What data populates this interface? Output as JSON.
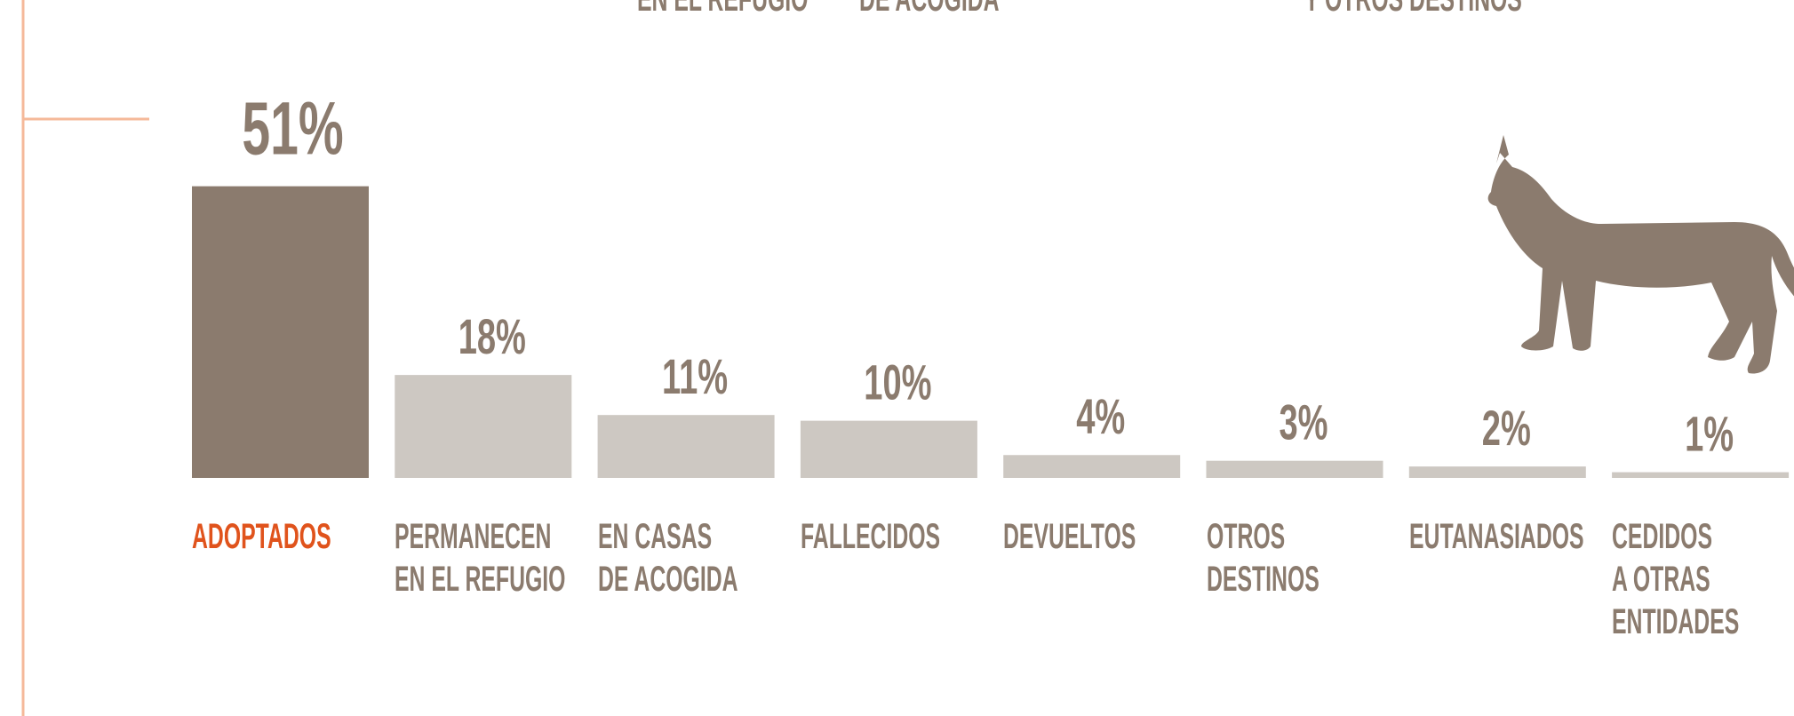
{
  "chart_data": {
    "type": "bar",
    "annotations": [
      "EN EL REFUGIO",
      "DE ACOGIDA",
      "Y OTROS DESTINOS"
    ],
    "categories": [
      "ADOPTADOS",
      "PERMANECEN\nEN EL REFUGIO",
      "EN CASAS\nDE ACOGIDA",
      "FALLECIDOS",
      "DEVUELTOS",
      "OTROS\nDESTINOS",
      "EUTANASIADOS",
      "CEDIDOS\nA OTRAS\nENTIDADES"
    ],
    "values": [
      51,
      18,
      11,
      10,
      4,
      3,
      2,
      1
    ],
    "value_labels": [
      "51%",
      "18%",
      "11%",
      "10%",
      "4%",
      "3%",
      "2%",
      "1%"
    ],
    "colors": [
      "#8b7b6e",
      "#cdc8c2",
      "#cdc8c2",
      "#cdc8c2",
      "#cdc8c2",
      "#cdc8c2",
      "#cdc8c2",
      "#cdc8c2"
    ],
    "label_colors": [
      "#e0531c",
      "#8b7b6e",
      "#8b7b6e",
      "#8b7b6e",
      "#8b7b6e",
      "#8b7b6e",
      "#8b7b6e",
      "#8b7b6e"
    ]
  }
}
